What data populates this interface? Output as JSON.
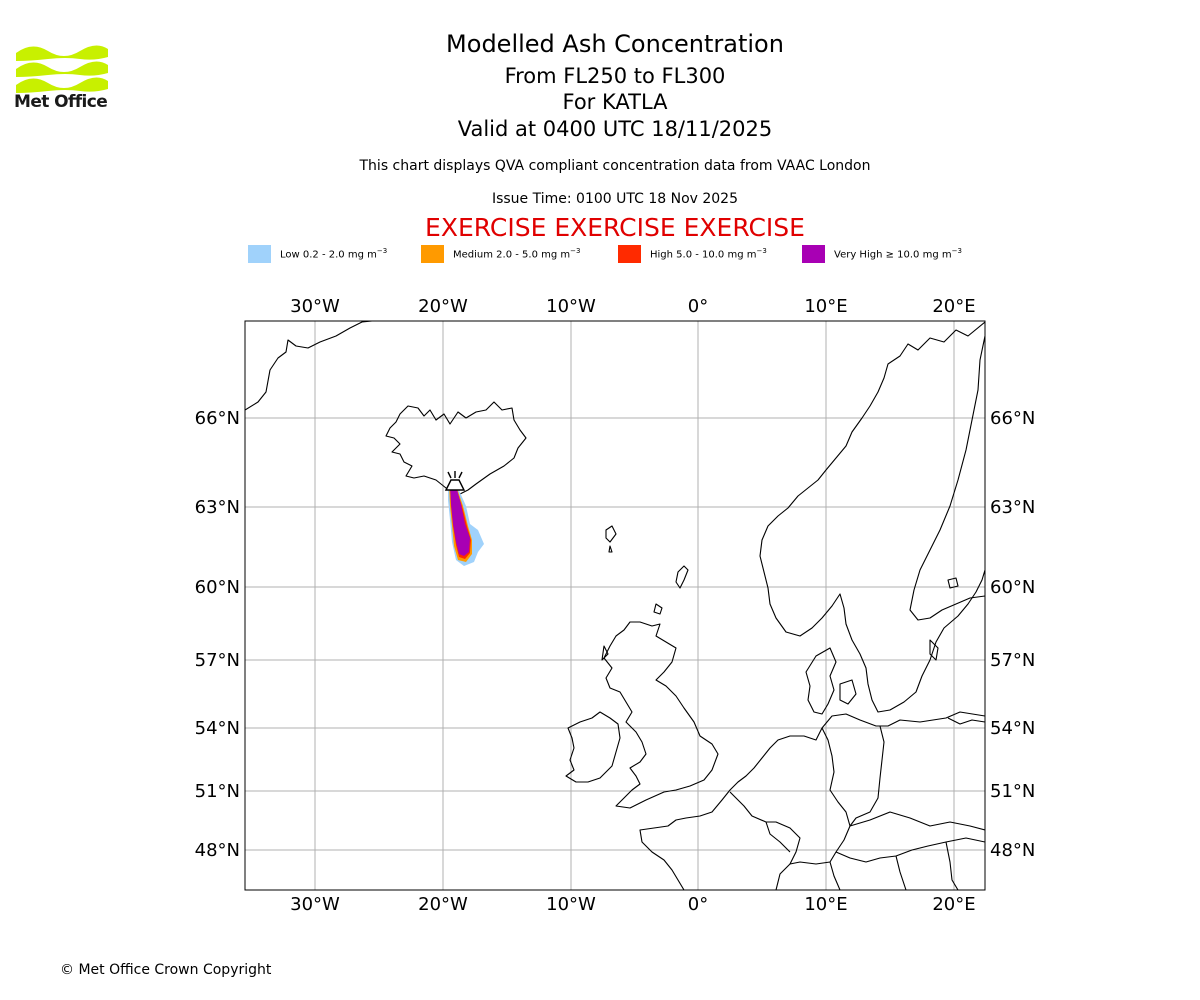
{
  "header": {
    "logo_text": "Met Office",
    "title": "Modelled Ash Concentration",
    "subtitle_levels": "From FL250 to FL300",
    "subtitle_volcano": "For KATLA",
    "subtitle_valid": "Valid at 0400 UTC 18/11/2025",
    "description": "This chart displays QVA compliant concentration data from VAAC London",
    "issue_time": "Issue Time: 0100 UTC 18 Nov 2025",
    "exercise_banner": "EXERCISE EXERCISE EXERCISE"
  },
  "legend": [
    {
      "label": "Low 0.2 - 2.0 mg m",
      "color": "#a0d2fb"
    },
    {
      "label": "Medium 2.0 - 5.0 mg m",
      "color": "#ff9a00"
    },
    {
      "label": "High 5.0 - 10.0 mg m",
      "color": "#ff2a00"
    },
    {
      "label": "Very High ≥ 10.0 mg m",
      "color": "#a800b4"
    }
  ],
  "legend_unit_exponent": "−3",
  "map": {
    "lon_ticks": [
      "30°W",
      "20°W",
      "10°W",
      "0°",
      "10°E",
      "20°E"
    ],
    "lat_ticks": [
      "66°N",
      "63°N",
      "60°N",
      "57°N",
      "54°N",
      "51°N",
      "48°N"
    ],
    "volcano": "KATLA"
  },
  "footer": {
    "copyright": "© Met Office Crown Copyright"
  }
}
